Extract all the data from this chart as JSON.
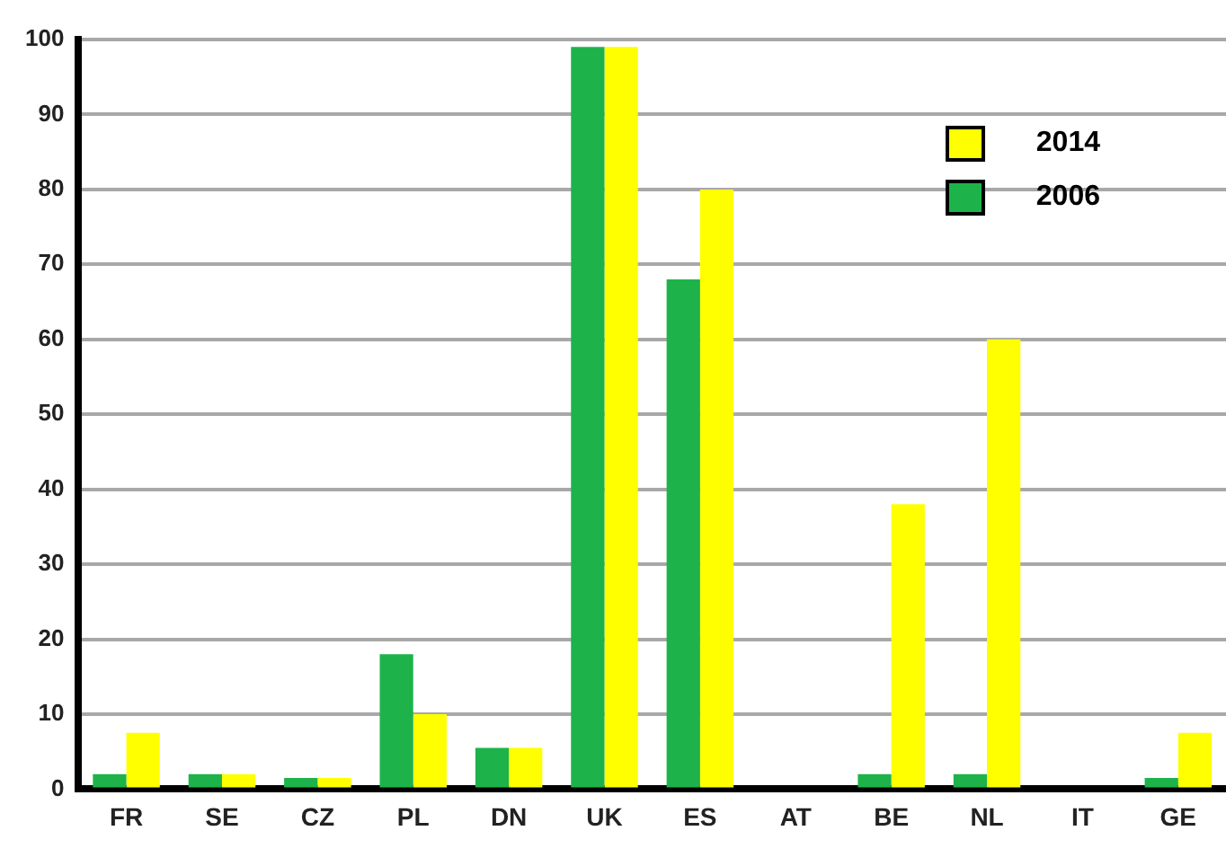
{
  "chart_data": {
    "type": "bar",
    "categories": [
      "FR",
      "SE",
      "CZ",
      "PL",
      "DN",
      "UK",
      "ES",
      "AT",
      "BE",
      "NL",
      "IT",
      "GE"
    ],
    "series": [
      {
        "name": "2006",
        "color": "#1db34a",
        "values": [
          2,
          2,
          1.5,
          18,
          5.5,
          99,
          68,
          0,
          2,
          2,
          0,
          1.5
        ]
      },
      {
        "name": "2014",
        "color": "#ffff00",
        "values": [
          7.5,
          2,
          1.5,
          10,
          5.5,
          99,
          80,
          0,
          38,
          60,
          0,
          7.5
        ]
      }
    ],
    "ylim": [
      0,
      100
    ],
    "yticks": [
      0,
      10,
      20,
      30,
      40,
      50,
      60,
      70,
      80,
      90,
      100
    ],
    "grid": "y",
    "legend": "top right"
  }
}
